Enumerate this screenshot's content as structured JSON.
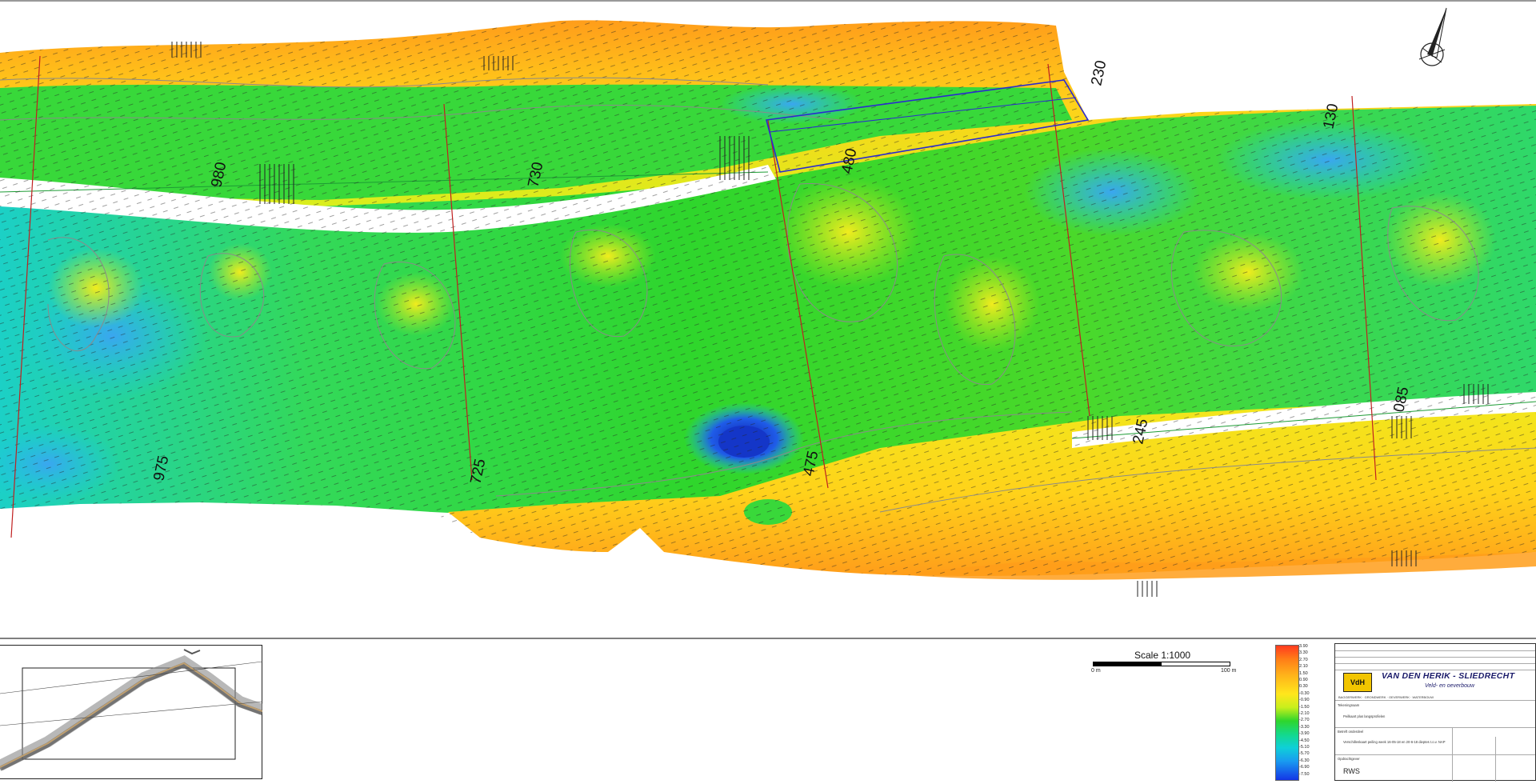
{
  "map": {
    "title": "",
    "colors": {
      "deep": "#1436e6",
      "shallow_water": "#19b8ee",
      "mid": "#2fd62c",
      "yellow": "#ffe61c",
      "orange": "#ff9d1a",
      "red": "#ff3b1f",
      "channel": "#ffffff",
      "grid_line": "#c02020",
      "contour": "#8a8a8a",
      "outline": "#2a2ad0"
    },
    "profile_labels": [
      "980",
      "730",
      "480",
      "230",
      "130",
      "975",
      "725",
      "475",
      "245",
      "085"
    ],
    "north_arrow": "north-arrow-icon"
  },
  "scale": {
    "title": "Scale 1:1000",
    "left": "0 m",
    "right": "100 m"
  },
  "legend": {
    "values": [
      "3.90",
      "3.30",
      "2.70",
      "2.10",
      "1.50",
      "0.90",
      "0.30",
      "-0.30",
      "-0.90",
      "-1.50",
      "-2.10",
      "-2.70",
      "-3.30",
      "-3.90",
      "-4.50",
      "-5.10",
      "-5.70",
      "-6.30",
      "-6.90",
      "-7.50"
    ]
  },
  "title_block": {
    "company": "VAN DEN HERIK - SLIEDRECHT",
    "slogan": "Veld- en oeverbouw",
    "subline": "BAGGERWERK · GRONDWERK · OEVERWERK · WATERBOUW",
    "drawing_label": "Tekeningnaam",
    "drawing_name": "Peilkaart plus langsprofielen",
    "subject_label": "Betreft onderdeel",
    "subject": "Verschillenkaart peiling week 16-05-18 en 20-6-18 dieptes t.o.v. NAP",
    "client_label": "Opdrachtgever",
    "client": "RWS"
  }
}
